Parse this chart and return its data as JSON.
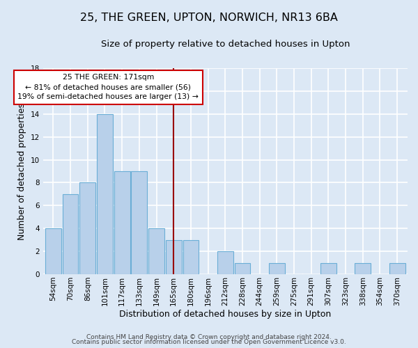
{
  "title": "25, THE GREEN, UPTON, NORWICH, NR13 6BA",
  "subtitle": "Size of property relative to detached houses in Upton",
  "xlabel": "Distribution of detached houses by size in Upton",
  "ylabel": "Number of detached properties",
  "bin_labels": [
    "54sqm",
    "70sqm",
    "86sqm",
    "101sqm",
    "117sqm",
    "133sqm",
    "149sqm",
    "165sqm",
    "180sqm",
    "196sqm",
    "212sqm",
    "228sqm",
    "244sqm",
    "259sqm",
    "275sqm",
    "291sqm",
    "307sqm",
    "323sqm",
    "338sqm",
    "354sqm",
    "370sqm"
  ],
  "bin_centers": [
    0,
    1,
    2,
    3,
    4,
    5,
    6,
    7,
    8,
    9,
    10,
    11,
    12,
    13,
    14,
    15,
    16,
    17,
    18,
    19,
    20
  ],
  "counts": [
    4,
    7,
    8,
    14,
    9,
    9,
    4,
    3,
    3,
    0,
    2,
    1,
    0,
    1,
    0,
    0,
    1,
    0,
    1,
    0,
    1
  ],
  "bar_color": "#b8d0ea",
  "bar_edge_color": "#6aaed6",
  "property_size_idx": 7.0,
  "vline_color": "#990000",
  "annotation_text": "25 THE GREEN: 171sqm\n← 81% of detached houses are smaller (56)\n19% of semi-detached houses are larger (13) →",
  "annotation_box_color": "#ffffff",
  "annotation_box_edge": "#cc0000",
  "ylim": [
    0,
    18
  ],
  "yticks": [
    0,
    2,
    4,
    6,
    8,
    10,
    12,
    14,
    16,
    18
  ],
  "footer1": "Contains HM Land Registry data © Crown copyright and database right 2024.",
  "footer2": "Contains public sector information licensed under the Open Government Licence v3.0.",
  "bg_color": "#dce8f5",
  "plot_bg_color": "#dce8f5",
  "grid_color": "#ffffff",
  "title_fontsize": 11.5,
  "subtitle_fontsize": 9.5,
  "axis_label_fontsize": 9,
  "tick_fontsize": 7.5,
  "footer_fontsize": 6.5
}
